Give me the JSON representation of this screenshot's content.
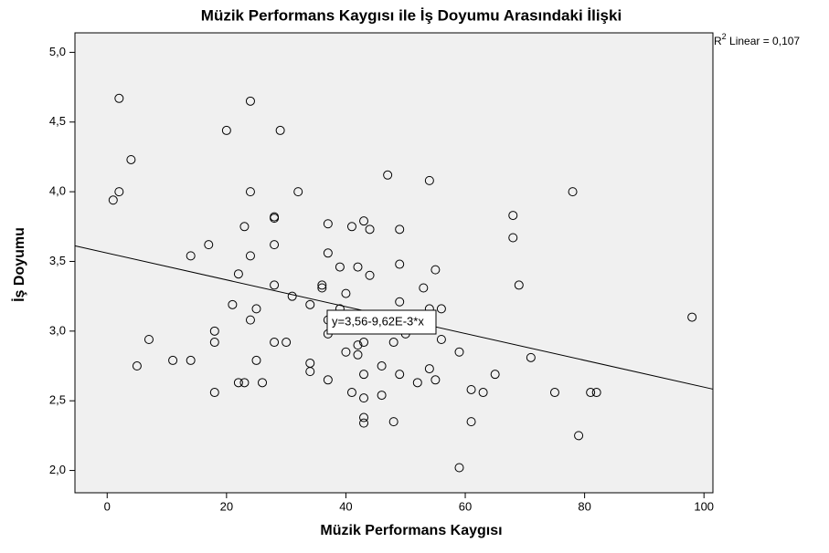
{
  "chart_data": {
    "type": "scatter",
    "title": "Müzik Performans Kaygısı ile İş Doyumu Arasındaki İlişki",
    "x_label": "Müzik Performans Kaygısı",
    "y_label": "İş Doyumu",
    "xlim": [
      -5.4,
      101.5
    ],
    "ylim": [
      1.84,
      5.14
    ],
    "xticks": [
      0,
      20,
      40,
      60,
      80,
      100
    ],
    "yticks": [
      {
        "value": 2.0,
        "label": "2,0"
      },
      {
        "value": 2.5,
        "label": "2,5"
      },
      {
        "value": 3.0,
        "label": "3,0"
      },
      {
        "value": 3.5,
        "label": "3,5"
      },
      {
        "value": 4.0,
        "label": "4,0"
      },
      {
        "value": 4.5,
        "label": "4,5"
      },
      {
        "value": 5.0,
        "label": "5,0"
      }
    ],
    "fit": {
      "intercept": 3.56,
      "slope": -0.00962,
      "label": "y=3,56-9,62E-3*x"
    },
    "r2_label": {
      "r": "R",
      "sup": "2",
      "rest": " Linear = 0,107"
    },
    "series": [
      {
        "color": "#000000",
        "x": [
          2,
          24,
          20,
          29,
          4,
          47,
          54,
          2,
          1,
          24,
          32,
          78,
          28,
          28,
          68,
          23,
          37,
          41,
          43,
          44,
          49,
          68,
          17,
          28,
          14,
          24,
          37,
          39,
          42,
          49,
          55,
          44,
          22,
          28,
          36,
          36,
          53,
          69,
          31,
          40,
          21,
          25,
          34,
          39,
          49,
          54,
          56,
          24,
          37,
          18,
          37,
          50,
          98,
          7,
          18,
          28,
          30,
          43,
          42,
          48,
          56,
          40,
          42,
          59,
          71,
          11,
          14,
          25,
          34,
          5,
          34,
          43,
          46,
          49,
          54,
          55,
          65,
          22,
          23,
          26,
          37,
          52,
          18,
          41,
          43,
          46,
          61,
          63,
          75,
          81,
          82,
          43,
          43,
          48,
          61,
          79,
          59
        ],
        "values": [
          4.67,
          4.65,
          4.44,
          4.44,
          4.23,
          4.12,
          4.08,
          4.0,
          3.94,
          4.0,
          4.0,
          4.0,
          3.81,
          3.82,
          3.83,
          3.75,
          3.77,
          3.75,
          3.79,
          3.73,
          3.73,
          3.67,
          3.62,
          3.62,
          3.54,
          3.54,
          3.56,
          3.46,
          3.46,
          3.48,
          3.44,
          3.4,
          3.41,
          3.33,
          3.33,
          3.31,
          3.31,
          3.33,
          3.25,
          3.27,
          3.19,
          3.16,
          3.19,
          3.16,
          3.21,
          3.16,
          3.16,
          3.08,
          3.08,
          3.0,
          2.98,
          2.98,
          3.1,
          2.94,
          2.92,
          2.92,
          2.92,
          2.92,
          2.9,
          2.92,
          2.94,
          2.85,
          2.83,
          2.85,
          2.81,
          2.79,
          2.79,
          2.79,
          2.77,
          2.75,
          2.71,
          2.69,
          2.75,
          2.69,
          2.73,
          2.65,
          2.69,
          2.63,
          2.63,
          2.63,
          2.65,
          2.63,
          2.56,
          2.56,
          2.52,
          2.54,
          2.58,
          2.56,
          2.56,
          2.56,
          2.56,
          2.38,
          2.34,
          2.35,
          2.35,
          2.25,
          2.02
        ]
      }
    ]
  }
}
